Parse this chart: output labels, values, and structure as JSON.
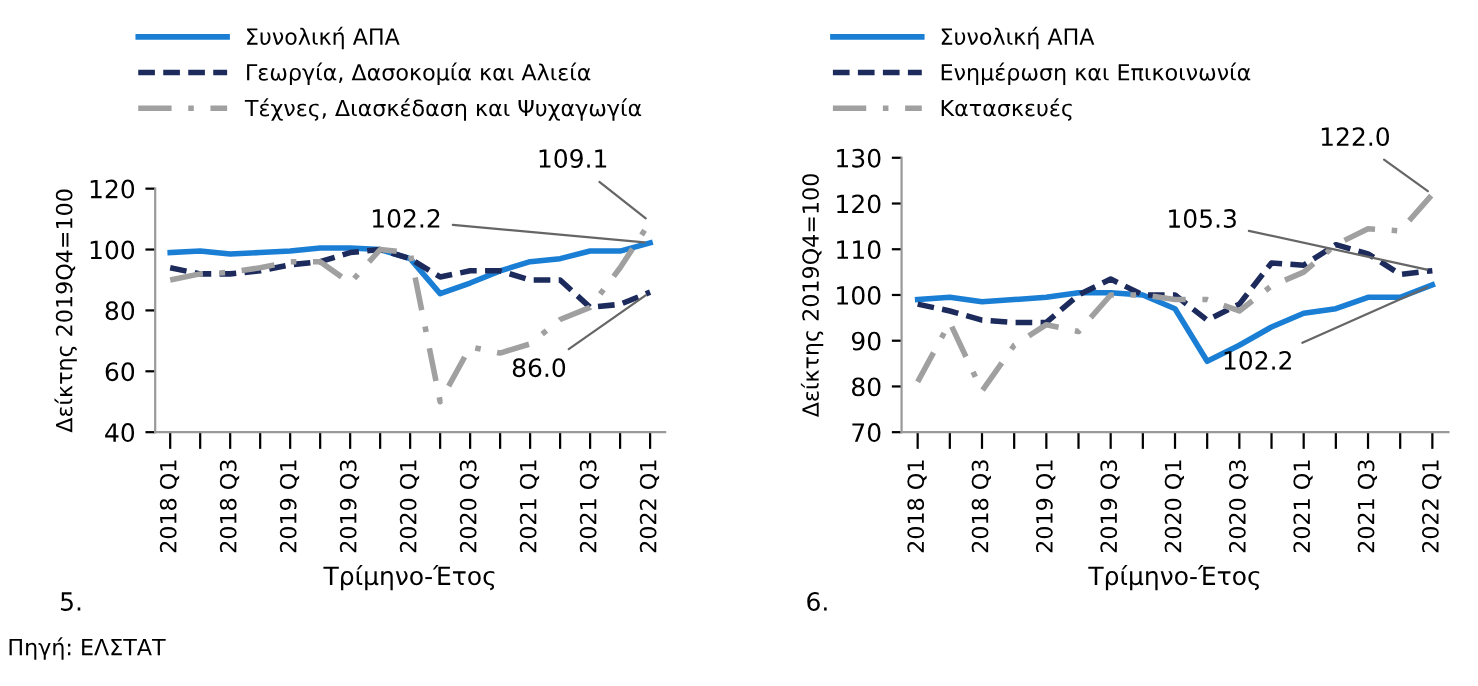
{
  "chart_data": [
    {
      "type": "line",
      "ylabel": "Δείκτης 2019Q4=100",
      "xlabel": "Τρίμηνο-Έτος",
      "categories": [
        "2018 Q1",
        null,
        "2018 Q3",
        null,
        "2019 Q1",
        null,
        "2019 Q3",
        null,
        "2020 Q1",
        null,
        "2020 Q3",
        null,
        "2021 Q1",
        null,
        "2021 Q3",
        null,
        "2022 Q1"
      ],
      "series": [
        {
          "name": "Συνολική ΑΠΑ",
          "color": "#1a7fd4",
          "line_style": "solid",
          "values": [
            99,
            99.5,
            98.5,
            99,
            99.5,
            100.5,
            100.5,
            100,
            97,
            85.5,
            89,
            93,
            96,
            97,
            99.5,
            99.5,
            102.2
          ]
        },
        {
          "name": "Γεωργία, Δασοκομία και Αλιεία",
          "color": "#1c2a5c",
          "line_style": "dashed",
          "values": [
            94,
            92,
            92,
            93,
            95,
            96,
            99,
            100,
            97,
            91,
            93,
            93,
            90,
            90,
            81,
            82,
            86.0
          ]
        },
        {
          "name": "Τέχνες, Διασκέδαση και Ψυχαγωγία",
          "color": "#a0a0a0",
          "line_style": "dashdot",
          "values": [
            90,
            92,
            92.5,
            94,
            96,
            96,
            89,
            100,
            99,
            50,
            68,
            66,
            69,
            77,
            81,
            94,
            109.1
          ]
        }
      ],
      "ylim": [
        40,
        120
      ],
      "yticks": [
        40,
        60,
        80,
        100,
        120
      ],
      "grid": false,
      "legend": "top",
      "marker": "none",
      "annotations": [
        {
          "text": "109.1",
          "x": "2022 Q1",
          "y": 109.1
        },
        {
          "text": "102.2",
          "x": "2022 Q1",
          "y": 102.2
        },
        {
          "text": "86.0",
          "x": "2022 Q1",
          "y": 86.0
        },
        "5.",
        "Πηγή: ΕΛΣΤΑΤ"
      ]
    },
    {
      "type": "line",
      "ylabel": "Δείκτης 2019Q4=100",
      "xlabel": "Τρίμηνο-Έτος",
      "categories": [
        "2018 Q1",
        null,
        "2018 Q3",
        null,
        "2019 Q1",
        null,
        "2019 Q3",
        null,
        "2020 Q1",
        null,
        "2020 Q3",
        null,
        "2021 Q1",
        null,
        "2021 Q3",
        null,
        "2022 Q1"
      ],
      "series": [
        {
          "name": "Συνολική ΑΠΑ",
          "color": "#1a7fd4",
          "line_style": "solid",
          "values": [
            99,
            99.5,
            98.5,
            99,
            99.5,
            100.5,
            100.5,
            100,
            97,
            85.5,
            89,
            93,
            96,
            97,
            99.5,
            99.5,
            102.2
          ]
        },
        {
          "name": "Ενημέρωση και Επικοινωνία",
          "color": "#1c2a5c",
          "line_style": "dashed",
          "values": [
            98,
            96.5,
            94.5,
            94,
            94,
            100,
            103.5,
            100,
            100,
            94.5,
            98,
            107,
            106.5,
            111,
            109,
            104.5,
            105.3
          ]
        },
        {
          "name": "Κατασκευές",
          "color": "#a0a0a0",
          "line_style": "dashdot",
          "values": [
            81,
            94,
            79,
            89,
            93.5,
            92,
            100,
            100,
            99,
            99,
            96.5,
            102,
            105,
            111,
            114.5,
            114,
            122.0
          ]
        }
      ],
      "ylim": [
        70,
        130
      ],
      "yticks": [
        70,
        80,
        90,
        100,
        110,
        120,
        130
      ],
      "grid": false,
      "legend": "top",
      "marker": "none",
      "annotations": [
        {
          "text": "122.0",
          "x": "2022 Q1",
          "y": 122.0
        },
        {
          "text": "105.3",
          "x": "2022 Q1",
          "y": 105.3
        },
        {
          "text": "102.2",
          "x": "2022 Q1",
          "y": 102.2
        },
        "6."
      ]
    }
  ]
}
